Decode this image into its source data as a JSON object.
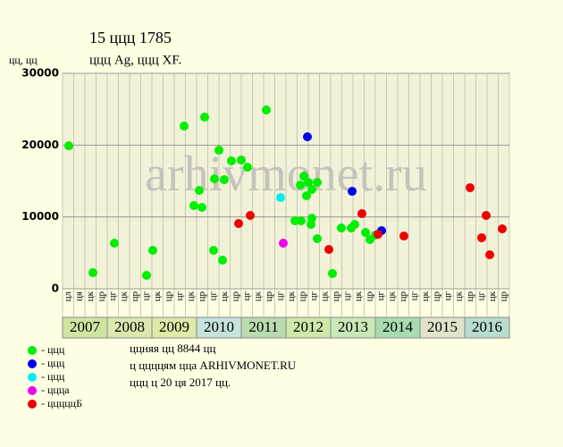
{
  "chart_data": {
    "type": "scatter",
    "title": "15 ццц 1785",
    "subtitle": "ццц Ag, ццц XF.",
    "y_label": "цц, цц",
    "watermark": "arhivmonet.ru",
    "notes": [
      "ццняя цц 8844 цц",
      "ц ццццям цца ARHIVMONET.RU",
      "ццц ц 20 ця 2017 цц."
    ],
    "years": [
      "2007",
      "2008",
      "2009",
      "2010",
      "2011",
      "2012",
      "2013",
      "2014",
      "2015",
      "2016"
    ],
    "categories": [
      "цл",
      "ця",
      "цк",
      "цр",
      "цг",
      "цк",
      "цр",
      "цг",
      "цк",
      "цр",
      "цг",
      "цк",
      "цр",
      "цг",
      "цк",
      "цр",
      "цг",
      "цк",
      "цр",
      "цг",
      "цк",
      "цр",
      "цг",
      "цк",
      "цр",
      "цг",
      "цк",
      "цр",
      "цг",
      "цк",
      "цр",
      "цг",
      "цк",
      "цр",
      "цг",
      "цк",
      "цр",
      "цг",
      "цк",
      "цр"
    ],
    "xlim": [
      2007,
      2017
    ],
    "ylim": [
      0,
      30000
    ],
    "yticks": [
      0,
      10000,
      20000,
      30000
    ],
    "grid": true,
    "series": [
      {
        "name": "- ццц",
        "color": "#00ee00",
        "x": [
          2007.14,
          2007.68,
          2008.16,
          2008.88,
          2009.02,
          2009.72,
          2009.94,
          2010.06,
          2010.12,
          2010.18,
          2010.38,
          2010.4,
          2010.5,
          2010.58,
          2010.62,
          2010.78,
          2011.0,
          2011.14,
          2011.56,
          2012.2,
          2012.34,
          2012.32,
          2012.4,
          2012.46,
          2012.5,
          2012.56,
          2012.58,
          2012.58,
          2012.7,
          2012.7,
          2013.04,
          2013.24,
          2013.46,
          2013.54,
          2013.78,
          2013.88,
          2014.0
        ],
        "values": [
          19900,
          2240,
          6350,
          1870,
          5350,
          22650,
          11580,
          13690,
          11330,
          23900,
          5350,
          15310,
          19290,
          3980,
          15190,
          17800,
          17920,
          16930,
          24900,
          9460,
          9460,
          14440,
          15680,
          12950,
          14810,
          8960,
          9830,
          13820,
          14810,
          6970,
          2120,
          8460,
          8460,
          8960,
          7840,
          6850,
          7470
        ]
      },
      {
        "name": "- ццц",
        "color": "#0000ee",
        "x": [
          2012.48,
          2013.48,
          2014.14
        ],
        "values": [
          21160,
          13570,
          8090
        ]
      },
      {
        "name": "- ццц",
        "color": "#00eeee",
        "x": [
          2011.88
        ],
        "values": [
          12700
        ]
      },
      {
        "name": "- ццца",
        "color": "#ee00ee",
        "x": [
          2011.94
        ],
        "values": [
          6350
        ]
      },
      {
        "name": "- цццццБ",
        "color": "#ee0000",
        "x": [
          2010.94,
          2011.2,
          2012.96,
          2013.7,
          2014.06,
          2014.64,
          2016.12,
          2016.38,
          2016.48,
          2016.56,
          2016.84
        ],
        "values": [
          9090,
          10210,
          5480,
          10460,
          7590,
          7340,
          14070,
          7100,
          10210,
          4730,
          8340
        ]
      }
    ]
  }
}
